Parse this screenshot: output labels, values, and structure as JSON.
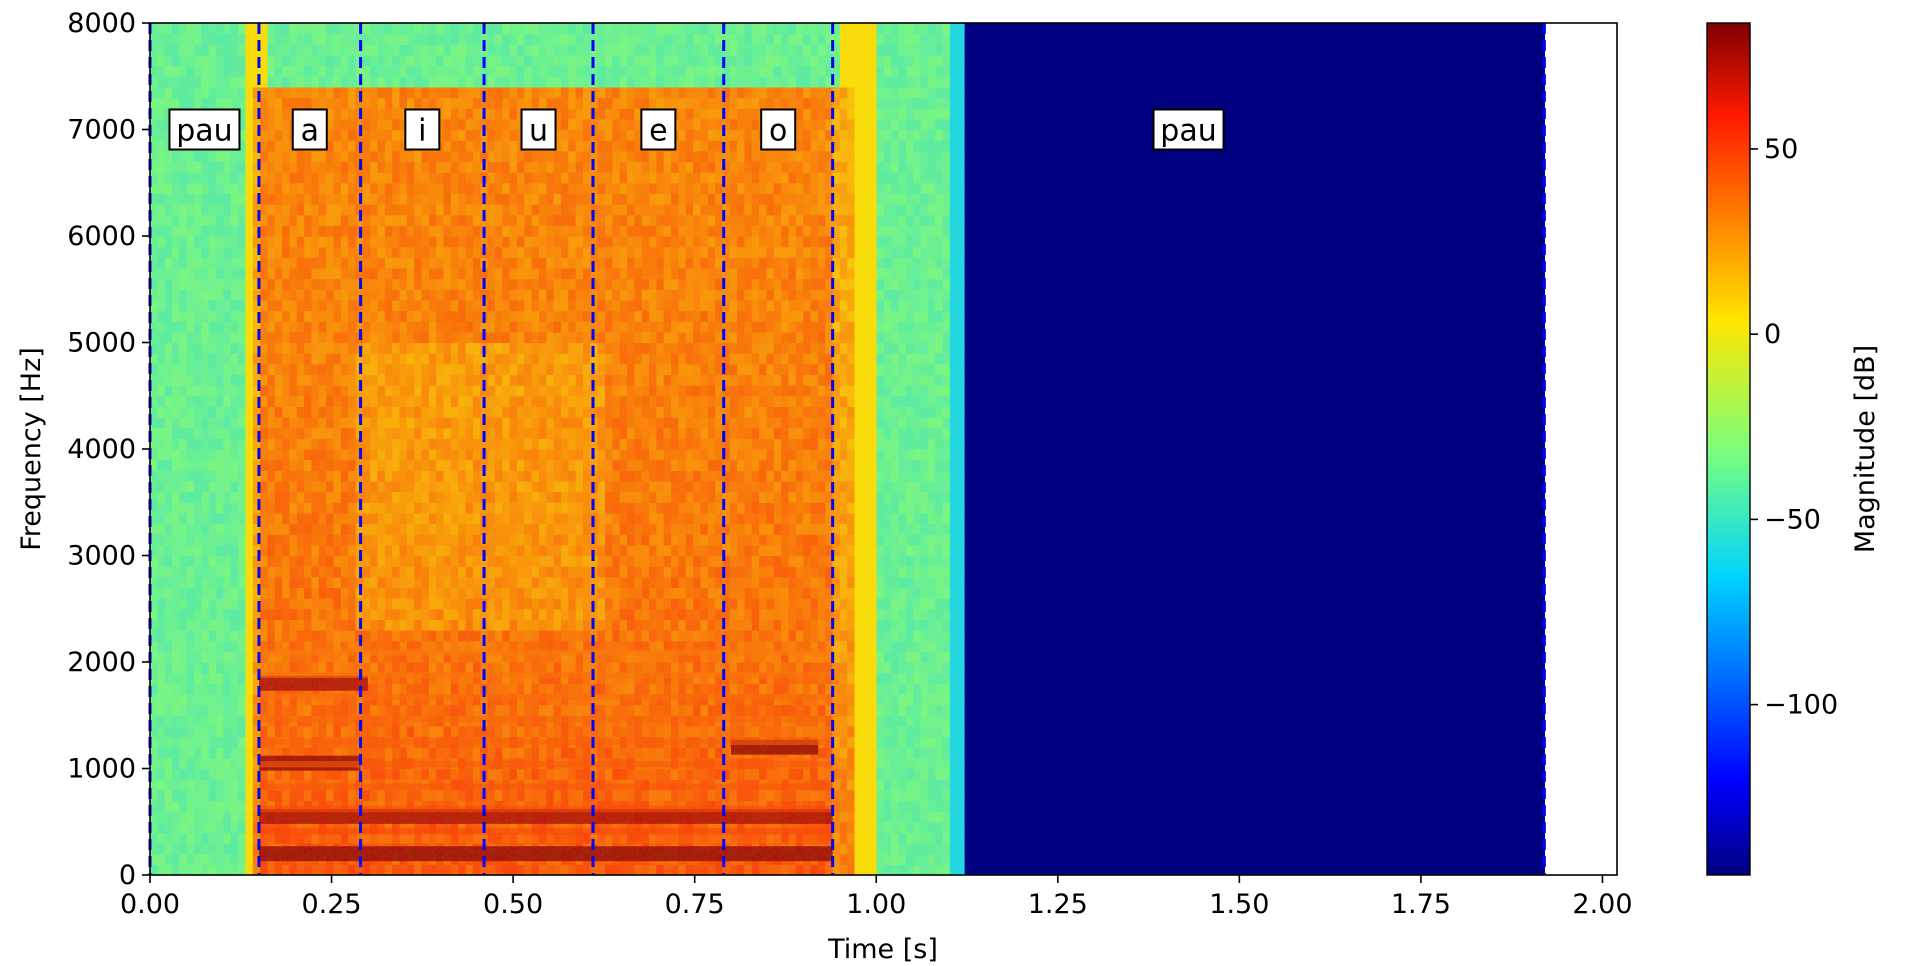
{
  "chart_data": {
    "type": "heatmap",
    "title": "",
    "xlabel": "Time [s]",
    "ylabel": "Frequency [Hz]",
    "xlim": [
      0,
      2.02
    ],
    "ylim": [
      0,
      8000
    ],
    "x_ticks": [
      0,
      0.25,
      0.5,
      0.75,
      1.0,
      1.25,
      1.5,
      1.75,
      2.0
    ],
    "x_tick_labels": [
      "0.00",
      "0.25",
      "0.50",
      "0.75",
      "1.00",
      "1.25",
      "1.50",
      "1.75",
      "2.00"
    ],
    "y_ticks": [
      0,
      1000,
      2000,
      3000,
      4000,
      5000,
      6000,
      7000,
      8000
    ],
    "y_tick_labels": [
      "0",
      "1000",
      "2000",
      "3000",
      "4000",
      "5000",
      "6000",
      "7000",
      "8000"
    ],
    "spectrogram_end_time": 1.92,
    "audio_end_time": 1.12,
    "voiced_region": {
      "start": 0.14,
      "end": 0.97,
      "max_freq": 7300
    },
    "formant_bands": [
      {
        "freq": 200,
        "start": 0.15,
        "end": 0.94,
        "level": 80
      },
      {
        "freq": 550,
        "start": 0.15,
        "end": 0.94,
        "level": 75
      },
      {
        "freq": 1050,
        "start": 0.15,
        "end": 0.29,
        "level": 80
      },
      {
        "freq": 1200,
        "start": 0.8,
        "end": 0.92,
        "level": 80
      },
      {
        "freq": 1800,
        "start": 0.15,
        "end": 0.3,
        "level": 75
      }
    ],
    "colorbar": {
      "label": "Magnitude [dB]",
      "range": [
        -146,
        84
      ],
      "ticks": [
        50,
        0,
        -50,
        -100
      ],
      "tick_labels": [
        "50",
        "0",
        "−50",
        "−100"
      ],
      "colormap": "jet"
    },
    "boundaries": [
      0.0,
      0.15,
      0.29,
      0.46,
      0.61,
      0.79,
      0.94,
      1.92
    ],
    "segments": [
      {
        "label": "pau",
        "time": 0.075
      },
      {
        "label": "a",
        "time": 0.22
      },
      {
        "label": "i",
        "time": 0.375
      },
      {
        "label": "u",
        "time": 0.535
      },
      {
        "label": "e",
        "time": 0.7
      },
      {
        "label": "o",
        "time": 0.865
      },
      {
        "label": "pau",
        "time": 1.43
      }
    ],
    "label_freq": 7000,
    "colors": {
      "background_noise": "#7ff27a",
      "silence": "#000080",
      "boundary_line": "#0000ff",
      "voiced": "#f08a3a",
      "formant": "#b02a10"
    }
  }
}
